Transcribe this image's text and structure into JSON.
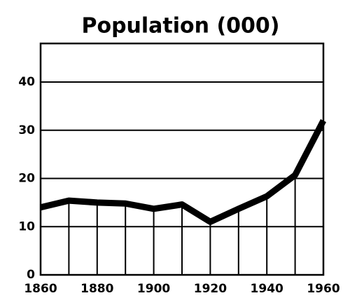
{
  "chart_data": {
    "type": "line",
    "title": "Population (000)",
    "x": [
      1860,
      1870,
      1880,
      1890,
      1900,
      1910,
      1920,
      1930,
      1940,
      1950,
      1960
    ],
    "values": [
      14,
      15.4,
      15,
      14.8,
      13.7,
      14.6,
      11,
      13.7,
      16.3,
      20.7,
      32
    ],
    "color": "#000000",
    "xlim": [
      1860,
      1960
    ],
    "xticks": [
      1860,
      1880,
      1900,
      1920,
      1940,
      1960
    ],
    "ylim": [
      0,
      48
    ],
    "yticks": [
      0,
      10,
      20,
      30,
      40
    ],
    "grid": true
  }
}
